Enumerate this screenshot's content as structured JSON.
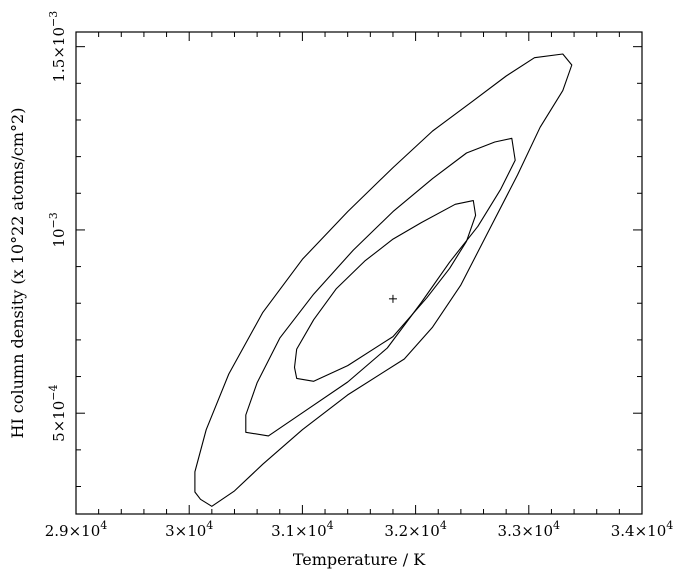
{
  "chart_data": {
    "type": "contour",
    "title": "",
    "xlabel": "Temperature / K",
    "ylabel": "HI column density (x 10^22 atoms/cm^2)",
    "ylabel_display": "HI column density (x 10°22 atoms/cm°2)",
    "xlim": [
      29000,
      34000
    ],
    "ylim": [
      0.000225,
      0.00154
    ],
    "grid": false,
    "x_ticks": [
      {
        "value": 29000,
        "mantissa": "2.9×10",
        "exp": "4"
      },
      {
        "value": 30000,
        "mantissa": "3×10",
        "exp": "4"
      },
      {
        "value": 31000,
        "mantissa": "3.1×10",
        "exp": "4"
      },
      {
        "value": 32000,
        "mantissa": "3.2×10",
        "exp": "4"
      },
      {
        "value": 33000,
        "mantissa": "3.3×10",
        "exp": "4"
      },
      {
        "value": 34000,
        "mantissa": "3.4×10",
        "exp": "4"
      }
    ],
    "y_ticks": [
      {
        "value": 0.0005,
        "mantissa": "5×10",
        "exp": "−4"
      },
      {
        "value": 0.001,
        "mantissa": "10",
        "exp": "−3"
      },
      {
        "value": 0.0015,
        "mantissa": "1.5×10",
        "exp": "−3"
      }
    ],
    "best_fit": {
      "x": 31800,
      "y": 0.000812
    },
    "contours": [
      {
        "level": "outer",
        "points": [
          [
            30100,
            0.000265
          ],
          [
            30200,
            0.000246
          ],
          [
            30400,
            0.000288
          ],
          [
            30650,
            0.000361
          ],
          [
            31000,
            0.000455
          ],
          [
            31400,
            0.00055
          ],
          [
            31900,
            0.000648
          ],
          [
            32150,
            0.000735
          ],
          [
            32400,
            0.00085
          ],
          [
            32650,
            0.001
          ],
          [
            32900,
            0.00115
          ],
          [
            33100,
            0.00128
          ],
          [
            33300,
            0.00138
          ],
          [
            33380,
            0.00145
          ],
          [
            33300,
            0.00148
          ],
          [
            33050,
            0.00147
          ],
          [
            32800,
            0.00142
          ],
          [
            32500,
            0.00135
          ],
          [
            32150,
            0.00127
          ],
          [
            31800,
            0.00117
          ],
          [
            31400,
            0.00105
          ],
          [
            31000,
            0.00092
          ],
          [
            30650,
            0.000775
          ],
          [
            30350,
            0.000607
          ],
          [
            30150,
            0.000455
          ],
          [
            30050,
            0.00034
          ],
          [
            30050,
            0.000285
          ]
        ]
      },
      {
        "level": "middle",
        "points": [
          [
            30500,
            0.000448
          ],
          [
            30700,
            0.000438
          ],
          [
            31000,
            0.000501
          ],
          [
            31400,
            0.000585
          ],
          [
            31750,
            0.000678
          ],
          [
            32050,
            0.000802
          ],
          [
            32300,
            0.000912
          ],
          [
            32550,
            0.00101
          ],
          [
            32750,
            0.00111
          ],
          [
            32880,
            0.00119
          ],
          [
            32850,
            0.00125
          ],
          [
            32700,
            0.00124
          ],
          [
            32450,
            0.00121
          ],
          [
            32150,
            0.00114
          ],
          [
            31800,
            0.00105
          ],
          [
            31450,
            0.000945
          ],
          [
            31100,
            0.000825
          ],
          [
            30800,
            0.000705
          ],
          [
            30600,
            0.000583
          ],
          [
            30500,
            0.000495
          ]
        ]
      },
      {
        "level": "inner",
        "points": [
          [
            30950,
            0.000595
          ],
          [
            31100,
            0.000587
          ],
          [
            31400,
            0.00063
          ],
          [
            31800,
            0.000709
          ],
          [
            32100,
            0.000815
          ],
          [
            32300,
            0.000895
          ],
          [
            32450,
            0.000969
          ],
          [
            32530,
            0.00104
          ],
          [
            32510,
            0.00108
          ],
          [
            32350,
            0.00107
          ],
          [
            32050,
            0.00102
          ],
          [
            31800,
            0.000975
          ],
          [
            31550,
            0.000915
          ],
          [
            31300,
            0.00084
          ],
          [
            31100,
            0.000755
          ],
          [
            30950,
            0.000675
          ],
          [
            30930,
            0.000625
          ]
        ]
      }
    ]
  }
}
